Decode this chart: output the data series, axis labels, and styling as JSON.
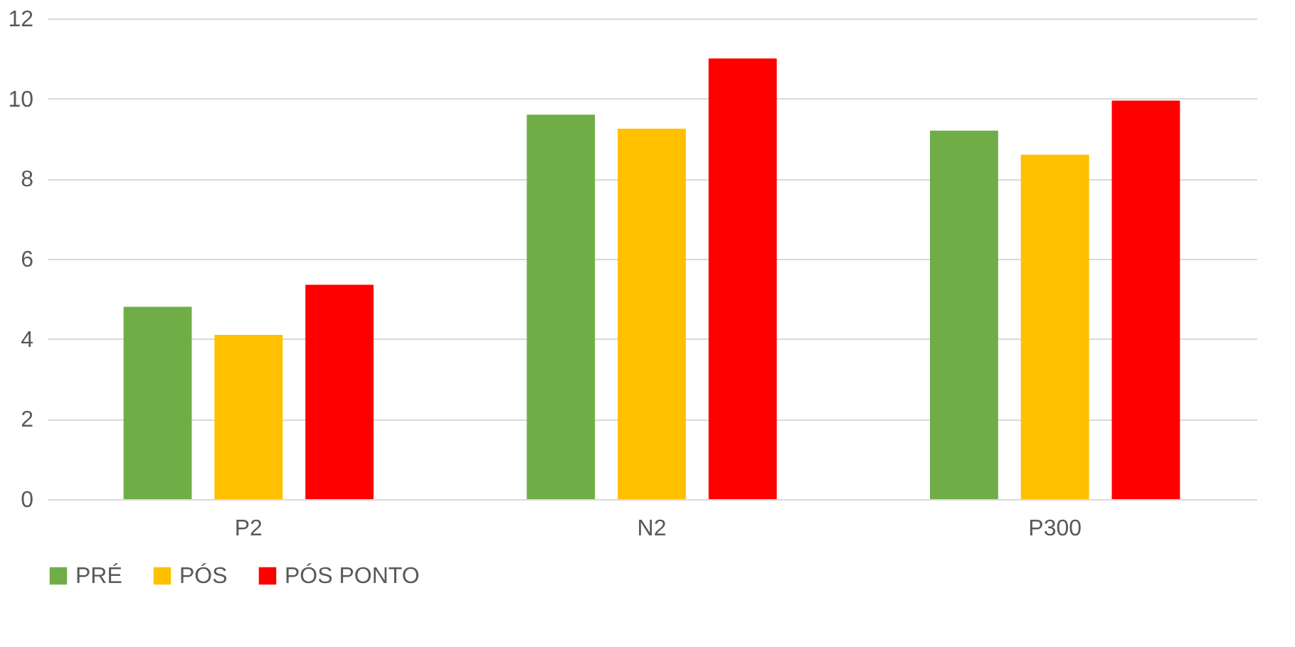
{
  "chart_data": {
    "type": "bar",
    "categories": [
      "P2",
      "N2",
      "P300"
    ],
    "series": [
      {
        "name": "PRÉ",
        "color": "#70ad47",
        "values": [
          4.8,
          9.6,
          9.2
        ]
      },
      {
        "name": "PÓS",
        "color": "#ffc000",
        "values": [
          4.1,
          9.25,
          8.6
        ]
      },
      {
        "name": "PÓS PONTO",
        "color": "#ff0000",
        "values": [
          5.35,
          11.0,
          9.95
        ]
      }
    ],
    "ylim": [
      0,
      12
    ],
    "yticks": [
      0,
      2,
      4,
      6,
      8,
      10,
      12
    ],
    "grid": "y",
    "legend": "bottom"
  }
}
